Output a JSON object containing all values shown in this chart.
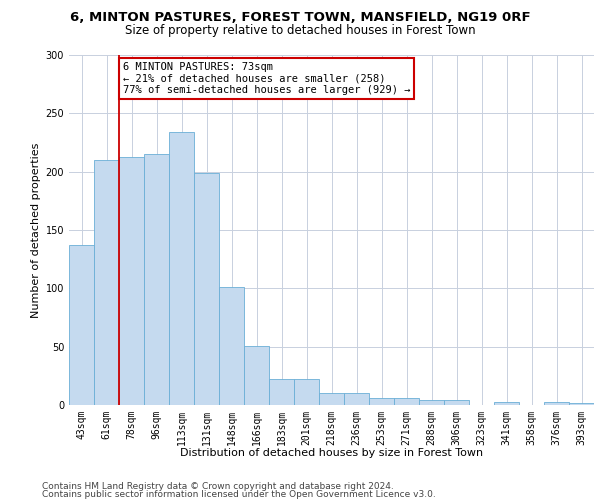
{
  "title": "6, MINTON PASTURES, FOREST TOWN, MANSFIELD, NG19 0RF",
  "subtitle": "Size of property relative to detached houses in Forest Town",
  "xlabel": "Distribution of detached houses by size in Forest Town",
  "ylabel": "Number of detached properties",
  "categories": [
    "43sqm",
    "61sqm",
    "78sqm",
    "96sqm",
    "113sqm",
    "131sqm",
    "148sqm",
    "166sqm",
    "183sqm",
    "201sqm",
    "218sqm",
    "236sqm",
    "253sqm",
    "271sqm",
    "288sqm",
    "306sqm",
    "323sqm",
    "341sqm",
    "358sqm",
    "376sqm",
    "393sqm"
  ],
  "values": [
    137,
    210,
    213,
    215,
    234,
    199,
    101,
    51,
    22,
    22,
    10,
    10,
    6,
    6,
    4,
    4,
    0,
    3,
    0,
    3,
    2
  ],
  "bar_color": "#c5daef",
  "bar_edge_color": "#6aaed6",
  "red_line_x": 1.5,
  "annotation_line1": "6 MINTON PASTURES: 73sqm",
  "annotation_line2": "← 21% of detached houses are smaller (258)",
  "annotation_line3": "77% of semi-detached houses are larger (929) →",
  "annotation_box_color": "#ffffff",
  "annotation_box_edge": "#cc0000",
  "red_line_color": "#cc0000",
  "footer_line1": "Contains HM Land Registry data © Crown copyright and database right 2024.",
  "footer_line2": "Contains public sector information licensed under the Open Government Licence v3.0.",
  "ylim": [
    0,
    300
  ],
  "yticks": [
    0,
    50,
    100,
    150,
    200,
    250,
    300
  ],
  "background_color": "#ffffff",
  "grid_color": "#c8d0de",
  "title_fontsize": 9.5,
  "subtitle_fontsize": 8.5,
  "ylabel_fontsize": 8,
  "xlabel_fontsize": 8,
  "tick_fontsize": 7,
  "annotation_fontsize": 7.5,
  "footer_fontsize": 6.5
}
